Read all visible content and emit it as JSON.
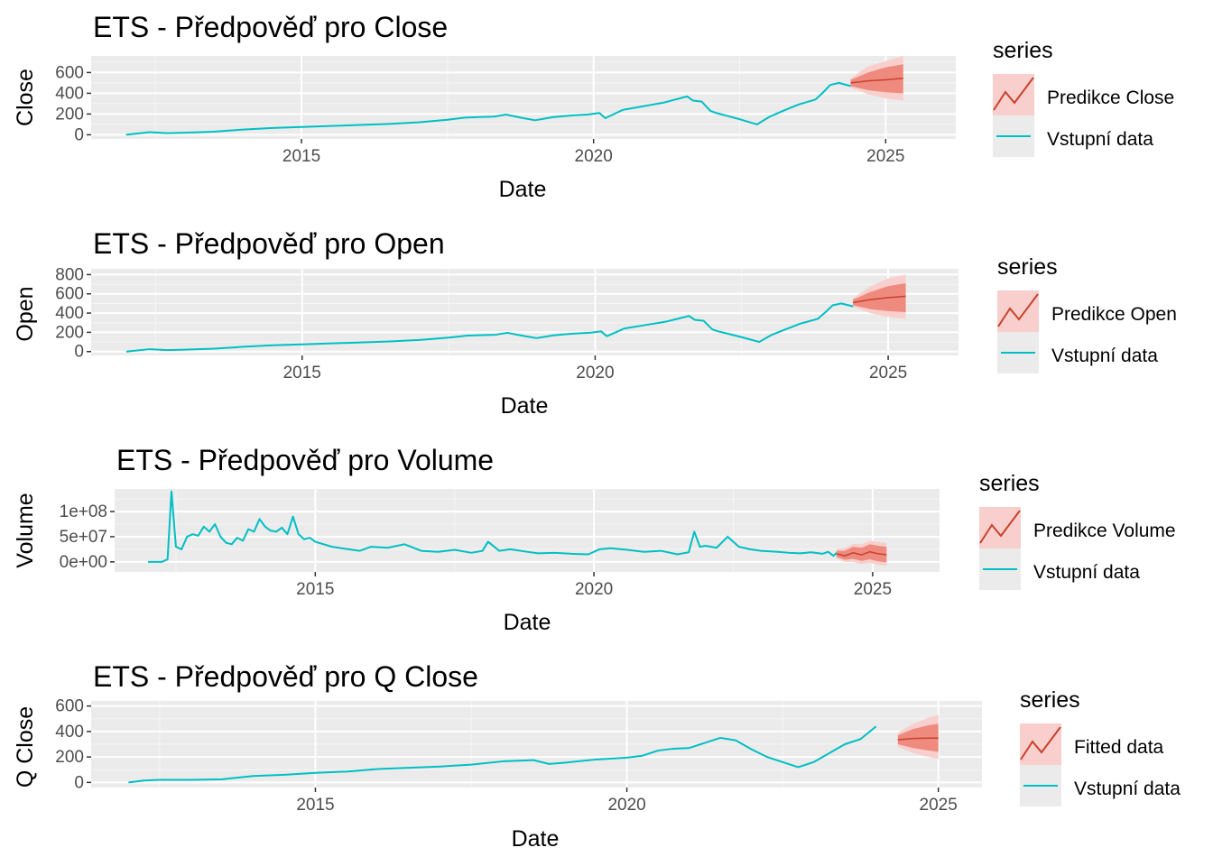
{
  "colors": {
    "input": "#00BFC4",
    "prediction": "#C8412C",
    "band_outer": "#F8CFCC",
    "band_inner": "#EE8A7E",
    "panel_bg": "#EBEBEB",
    "grid_major": "#FFFFFF",
    "grid_minor": "#F5F5F5",
    "axis_text": "#4D4D4D"
  },
  "chart_data": [
    {
      "type": "line",
      "title": "ETS - Předpověď pro Close",
      "xlabel": "Date",
      "ylabel": "Close",
      "xlim": [
        2011.4,
        2026.2
      ],
      "ylim": [
        -40,
        760
      ],
      "x_ticks": [
        2015,
        2020,
        2025
      ],
      "x_tick_labels": [
        "2015",
        "2020",
        "2025"
      ],
      "y_ticks": [
        0,
        200,
        400,
        600
      ],
      "y_tick_labels": [
        "0",
        "200",
        "400",
        "600"
      ],
      "grid": true,
      "legend": {
        "title": "series",
        "position": "right",
        "entries": [
          "Predikce Close",
          "Vstupní data"
        ]
      },
      "series": [
        {
          "name": "Vstupní data",
          "x": [
            2012.0,
            2012.4,
            2012.7,
            2013.0,
            2013.5,
            2014.0,
            2014.5,
            2015.0,
            2015.5,
            2016.0,
            2016.5,
            2017.0,
            2017.5,
            2017.8,
            2018.0,
            2018.3,
            2018.5,
            2018.8,
            2019.0,
            2019.3,
            2019.6,
            2019.9,
            2020.1,
            2020.2,
            2020.35,
            2020.5,
            2020.8,
            2021.0,
            2021.2,
            2021.4,
            2021.6,
            2021.7,
            2021.85,
            2022.0,
            2022.1,
            2022.3,
            2022.5,
            2022.8,
            2023.0,
            2023.2,
            2023.5,
            2023.8,
            2023.95,
            2024.05,
            2024.2,
            2024.4
          ],
          "y": [
            0,
            25,
            15,
            20,
            30,
            50,
            65,
            75,
            85,
            95,
            105,
            120,
            145,
            165,
            170,
            175,
            195,
            160,
            140,
            170,
            185,
            195,
            210,
            160,
            200,
            240,
            270,
            290,
            310,
            340,
            370,
            330,
            320,
            230,
            210,
            180,
            150,
            100,
            170,
            220,
            290,
            340,
            420,
            480,
            500,
            470
          ]
        },
        {
          "name": "Predikce Close",
          "x": [
            2024.4,
            2024.7,
            2025.0,
            2025.3
          ],
          "mean": [
            500,
            520,
            530,
            545
          ],
          "lo80": [
            470,
            430,
            410,
            400
          ],
          "hi80": [
            530,
            600,
            650,
            680
          ],
          "lo95": [
            455,
            390,
            350,
            330
          ],
          "hi95": [
            545,
            660,
            710,
            760
          ]
        }
      ]
    },
    {
      "type": "line",
      "title": "ETS - Předpověď pro Open",
      "xlabel": "Date",
      "ylabel": "Open",
      "xlim": [
        2011.4,
        2026.2
      ],
      "ylim": [
        -40,
        860
      ],
      "x_ticks": [
        2015,
        2020,
        2025
      ],
      "x_tick_labels": [
        "2015",
        "2020",
        "2025"
      ],
      "y_ticks": [
        0,
        200,
        400,
        600,
        800
      ],
      "y_tick_labels": [
        "0",
        "200",
        "400",
        "600",
        "800"
      ],
      "grid": true,
      "legend": {
        "title": "series",
        "position": "right",
        "entries": [
          "Predikce Open",
          "Vstupní data"
        ]
      },
      "series": [
        {
          "name": "Vstupní data",
          "x": [
            2012.0,
            2012.4,
            2012.7,
            2013.0,
            2013.5,
            2014.0,
            2014.5,
            2015.0,
            2015.5,
            2016.0,
            2016.5,
            2017.0,
            2017.5,
            2017.8,
            2018.0,
            2018.3,
            2018.5,
            2018.8,
            2019.0,
            2019.3,
            2019.6,
            2019.9,
            2020.1,
            2020.2,
            2020.35,
            2020.5,
            2020.8,
            2021.0,
            2021.2,
            2021.4,
            2021.6,
            2021.7,
            2021.85,
            2022.0,
            2022.1,
            2022.3,
            2022.5,
            2022.8,
            2023.0,
            2023.2,
            2023.5,
            2023.8,
            2023.95,
            2024.05,
            2024.2,
            2024.4
          ],
          "y": [
            0,
            25,
            15,
            20,
            30,
            50,
            65,
            75,
            85,
            95,
            105,
            120,
            145,
            165,
            170,
            175,
            195,
            160,
            140,
            170,
            185,
            195,
            210,
            160,
            200,
            240,
            270,
            290,
            310,
            340,
            370,
            330,
            320,
            230,
            210,
            180,
            150,
            100,
            170,
            220,
            290,
            340,
            420,
            480,
            500,
            470
          ]
        },
        {
          "name": "Predikce Open",
          "x": [
            2024.4,
            2024.7,
            2025.0,
            2025.3
          ],
          "mean": [
            510,
            540,
            560,
            575
          ],
          "lo80": [
            480,
            440,
            420,
            410
          ],
          "hi80": [
            540,
            620,
            680,
            710
          ],
          "lo95": [
            465,
            400,
            360,
            340
          ],
          "hi95": [
            555,
            680,
            760,
            800
          ]
        }
      ]
    },
    {
      "type": "line",
      "title": "ETS - Předpověď pro Volume",
      "xlabel": "Date",
      "ylabel": "Volume",
      "xlim": [
        2011.4,
        2026.2
      ],
      "ylim": [
        -20000000,
        145000000
      ],
      "x_ticks": [
        2015,
        2020,
        2025
      ],
      "x_tick_labels": [
        "2015",
        "2020",
        "2025"
      ],
      "y_ticks": [
        0,
        50000000,
        100000000
      ],
      "y_tick_labels": [
        "0e+00",
        "5e+07",
        "1e+08"
      ],
      "grid": true,
      "legend": {
        "title": "series",
        "position": "right",
        "entries": [
          "Predikce Volume",
          "Vstupní data"
        ]
      },
      "series": [
        {
          "name": "Vstupní data",
          "x": [
            2012.0,
            2012.25,
            2012.35,
            2012.42,
            2012.5,
            2012.6,
            2012.7,
            2012.8,
            2012.9,
            2013.0,
            2013.1,
            2013.2,
            2013.3,
            2013.4,
            2013.5,
            2013.6,
            2013.7,
            2013.8,
            2013.9,
            2014.0,
            2014.1,
            2014.2,
            2014.3,
            2014.4,
            2014.5,
            2014.6,
            2014.7,
            2014.8,
            2014.9,
            2015.0,
            2015.3,
            2015.6,
            2015.8,
            2016.0,
            2016.3,
            2016.6,
            2016.9,
            2017.2,
            2017.5,
            2017.8,
            2018.0,
            2018.1,
            2018.3,
            2018.5,
            2018.8,
            2019.0,
            2019.3,
            2019.6,
            2019.9,
            2020.1,
            2020.3,
            2020.6,
            2020.9,
            2021.2,
            2021.5,
            2021.7,
            2021.8,
            2021.9,
            2022.0,
            2022.2,
            2022.4,
            2022.6,
            2022.8,
            2023.0,
            2023.3,
            2023.5,
            2023.7,
            2023.9,
            2024.1,
            2024.2,
            2024.3,
            2024.35
          ],
          "y": [
            0,
            0,
            5000000,
            140000000,
            30000000,
            25000000,
            50000000,
            55000000,
            52000000,
            70000000,
            60000000,
            75000000,
            50000000,
            38000000,
            35000000,
            48000000,
            42000000,
            65000000,
            60000000,
            85000000,
            70000000,
            62000000,
            60000000,
            68000000,
            55000000,
            90000000,
            55000000,
            45000000,
            48000000,
            40000000,
            30000000,
            25000000,
            22000000,
            30000000,
            28000000,
            35000000,
            22000000,
            20000000,
            24000000,
            18000000,
            22000000,
            40000000,
            22000000,
            25000000,
            20000000,
            17000000,
            18000000,
            16000000,
            15000000,
            25000000,
            27000000,
            24000000,
            20000000,
            22000000,
            15000000,
            19000000,
            60000000,
            30000000,
            32000000,
            28000000,
            50000000,
            30000000,
            25000000,
            22000000,
            20000000,
            18000000,
            17000000,
            19000000,
            16000000,
            20000000,
            12000000,
            18000000
          ]
        },
        {
          "name": "Predikce Volume",
          "x": [
            2024.35,
            2024.5,
            2024.65,
            2024.8,
            2024.95,
            2025.1,
            2025.25
          ],
          "mean": [
            16000000,
            12000000,
            18000000,
            14000000,
            20000000,
            16000000,
            14000000
          ],
          "lo80": [
            10000000,
            4000000,
            6000000,
            2000000,
            5000000,
            1000000,
            -1000000
          ],
          "hi80": [
            22000000,
            22000000,
            30000000,
            28000000,
            35000000,
            32000000,
            30000000
          ],
          "lo95": [
            7000000,
            0,
            0,
            -4000000,
            -2000000,
            -6000000,
            -8000000
          ],
          "hi95": [
            25000000,
            27000000,
            36000000,
            35000000,
            42000000,
            40000000,
            37000000
          ]
        }
      ]
    },
    {
      "type": "line",
      "title": "ETS - Předpověď pro Q Close",
      "xlabel": "Date",
      "ylabel": "Q Close",
      "xlim": [
        2011.4,
        2025.7
      ],
      "ylim": [
        -40,
        640
      ],
      "x_ticks": [
        2015,
        2020,
        2025
      ],
      "x_tick_labels": [
        "2015",
        "2020",
        "2025"
      ],
      "y_ticks": [
        0,
        200,
        400,
        600
      ],
      "y_tick_labels": [
        "0",
        "200",
        "400",
        "600"
      ],
      "grid": true,
      "legend": {
        "title": "series",
        "position": "right",
        "entries": [
          "Fitted data",
          "Vstupní data"
        ]
      },
      "series": [
        {
          "name": "Vstupní data",
          "x": [
            2012.0,
            2012.25,
            2012.5,
            2013.0,
            2013.5,
            2014.0,
            2014.5,
            2015.0,
            2015.5,
            2016.0,
            2016.5,
            2017.0,
            2017.5,
            2018.0,
            2018.5,
            2018.75,
            2019.0,
            2019.5,
            2020.0,
            2020.25,
            2020.5,
            2020.75,
            2021.0,
            2021.25,
            2021.5,
            2021.75,
            2022.0,
            2022.25,
            2022.5,
            2022.75,
            2023.0,
            2023.25,
            2023.5,
            2023.75,
            2024.0
          ],
          "y": [
            0,
            15,
            20,
            20,
            25,
            50,
            60,
            75,
            85,
            105,
            115,
            125,
            140,
            165,
            175,
            145,
            155,
            180,
            195,
            210,
            250,
            265,
            270,
            310,
            350,
            330,
            260,
            200,
            160,
            120,
            160,
            230,
            300,
            340,
            440
          ]
        },
        {
          "name": "Fitted data",
          "x": [
            2024.35,
            2024.6,
            2024.85,
            2025.0
          ],
          "mean": [
            335,
            345,
            348,
            348
          ],
          "lo80": [
            300,
            270,
            250,
            240
          ],
          "hi80": [
            370,
            420,
            450,
            460
          ],
          "lo95": [
            280,
            230,
            200,
            185
          ],
          "hi95": [
            390,
            460,
            510,
            530
          ]
        }
      ]
    }
  ]
}
